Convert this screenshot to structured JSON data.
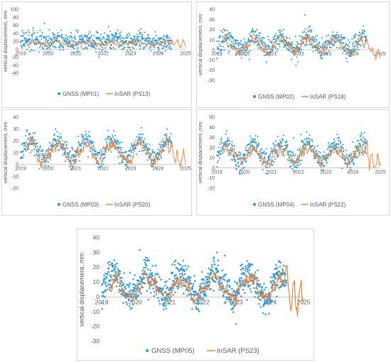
{
  "chart_data": [
    {
      "id": "p1",
      "type": "scatter",
      "ylabel": "vertical displacement, mm",
      "ylim": [
        -60,
        100
      ],
      "yticks": [
        -60,
        -40,
        -20,
        0,
        20,
        40,
        60,
        80,
        100
      ],
      "xlim": [
        2019,
        2025
      ],
      "xticks": [
        2019,
        2020,
        2021,
        2022,
        2023,
        2024,
        2025
      ],
      "legend": "bottom",
      "series": [
        {
          "name": "GNSS (MP01)",
          "kind": "points",
          "color": "#2e9ad6",
          "x_range": [
            2019,
            2024.5
          ],
          "base": 20,
          "noise": 12,
          "seasonal": 3
        },
        {
          "name": "InSAR (PS13)",
          "kind": "line",
          "color": "#ed7d31",
          "x_range": [
            2019.2,
            2025
          ],
          "base": 15,
          "noise": 4,
          "seasonal": 3
        }
      ]
    },
    {
      "id": "p2",
      "type": "scatter",
      "ylabel": "vertical displacement, mm",
      "ylim": [
        -30,
        40
      ],
      "yticks": [
        -30,
        -20,
        -10,
        0,
        10,
        20,
        30,
        40
      ],
      "xlim": [
        2019,
        2025
      ],
      "xticks": [
        2019,
        2020,
        2021,
        2022,
        2023,
        2024,
        2025
      ],
      "legend": "bottom",
      "series": [
        {
          "name": "GNSS (MP02)",
          "kind": "points",
          "color": "#2e9ad6",
          "x_range": [
            2019,
            2024.5
          ],
          "base": 6,
          "noise": 5,
          "seasonal": 6
        },
        {
          "name": "InSAR (PS18)",
          "kind": "line",
          "color": "#ed7d31",
          "x_range": [
            2019.2,
            2025
          ],
          "base": 4,
          "noise": 3,
          "seasonal": 6
        }
      ]
    },
    {
      "id": "p3",
      "type": "scatter",
      "ylabel": "vertical displacement, mm",
      "ylim": [
        -20,
        40
      ],
      "yticks": [
        -20,
        -10,
        0,
        10,
        20,
        30,
        40
      ],
      "xlim": [
        2019,
        2025
      ],
      "xticks": [
        2019,
        2020,
        2021,
        2022,
        2023,
        2024,
        2025
      ],
      "legend": "bottom",
      "series": [
        {
          "name": "GNSS (MP03)",
          "kind": "points",
          "color": "#2e9ad6",
          "x_range": [
            2019,
            2024.5
          ],
          "base": 13,
          "noise": 4,
          "seasonal": 8
        },
        {
          "name": "InSAR (PS20)",
          "kind": "line",
          "color": "#ed7d31",
          "x_range": [
            2019.2,
            2025
          ],
          "base": 10,
          "noise": 4,
          "seasonal": 7
        }
      ]
    },
    {
      "id": "p4",
      "type": "scatter",
      "ylabel": "vertical displacement, mm",
      "ylim": [
        -20,
        50
      ],
      "yticks": [
        -20,
        -10,
        0,
        10,
        20,
        30,
        40,
        50
      ],
      "xlim": [
        2019,
        2025
      ],
      "xticks": [
        2019,
        2020,
        2021,
        2022,
        2023,
        2024,
        2025
      ],
      "legend": "bottom",
      "series": [
        {
          "name": "GNSS (MP04)",
          "kind": "points",
          "color": "#2e9ad6",
          "x_range": [
            2019,
            2024.5
          ],
          "base": 15,
          "noise": 5,
          "seasonal": 9
        },
        {
          "name": "InSAR (PS22)",
          "kind": "line",
          "color": "#ed7d31",
          "x_range": [
            2019.2,
            2025
          ],
          "base": 13,
          "noise": 4,
          "seasonal": 7
        }
      ]
    },
    {
      "id": "p5",
      "type": "scatter",
      "ylabel": "vertical displacement, mm",
      "ylim": [
        -30,
        40
      ],
      "yticks": [
        -30,
        -20,
        -10,
        0,
        10,
        20,
        30,
        40
      ],
      "xlim": [
        2019,
        2025
      ],
      "xticks": [
        2019,
        2020,
        2021,
        2022,
        2023,
        2024,
        2025
      ],
      "legend": "bottom",
      "series": [
        {
          "name": "GNSS (MP05)",
          "kind": "points",
          "color": "#2e9ad6",
          "x_range": [
            2019,
            2024.5
          ],
          "base": 8,
          "noise": 5,
          "seasonal": 8
        },
        {
          "name": "InSAR (PS23)",
          "kind": "line",
          "color": "#ed7d31",
          "x_range": [
            2019.2,
            2025
          ],
          "base": 6,
          "noise": 4,
          "seasonal": 7
        }
      ]
    }
  ]
}
